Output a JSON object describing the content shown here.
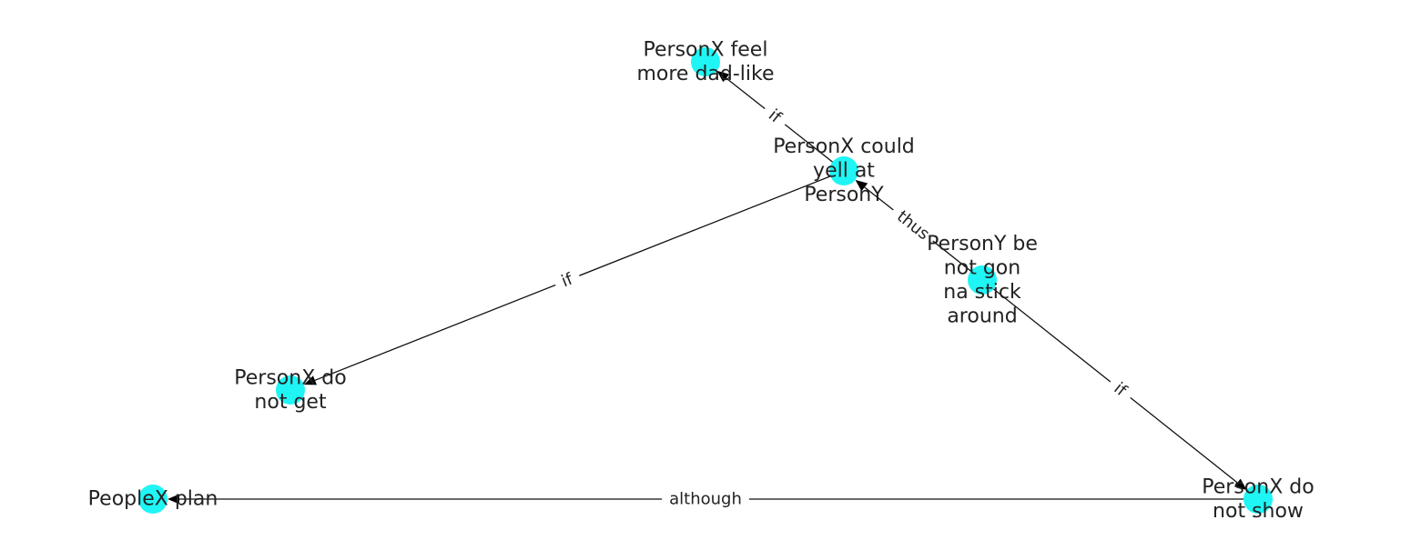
{
  "diagram": {
    "node_color": "#1ff5f5",
    "edge_color": "#111111",
    "nodes": [
      {
        "id": "feel",
        "lines": [
          "PersonX feel",
          "more dad-like"
        ]
      },
      {
        "id": "yell",
        "lines": [
          "PersonX could",
          "yell at",
          "PersonY"
        ]
      },
      {
        "id": "stick",
        "lines": [
          "PersonY be",
          "not gon",
          "na stick",
          "around"
        ]
      },
      {
        "id": "notget",
        "lines": [
          "PersonX do",
          "not get"
        ]
      },
      {
        "id": "plan",
        "lines": [
          "PeopleX plan"
        ]
      },
      {
        "id": "notshow",
        "lines": [
          "PersonX do",
          "not show"
        ]
      }
    ],
    "edges": [
      {
        "id": "e1",
        "from": "yell",
        "to": "feel",
        "label": "if"
      },
      {
        "id": "e2",
        "from": "stick",
        "to": "yell",
        "label": "thus"
      },
      {
        "id": "e3",
        "from": "yell",
        "to": "notget",
        "label": "if"
      },
      {
        "id": "e4",
        "from": "stick",
        "to": "notshow",
        "label": "if"
      },
      {
        "id": "e5",
        "from": "notshow",
        "to": "plan",
        "label": "although"
      }
    ]
  }
}
